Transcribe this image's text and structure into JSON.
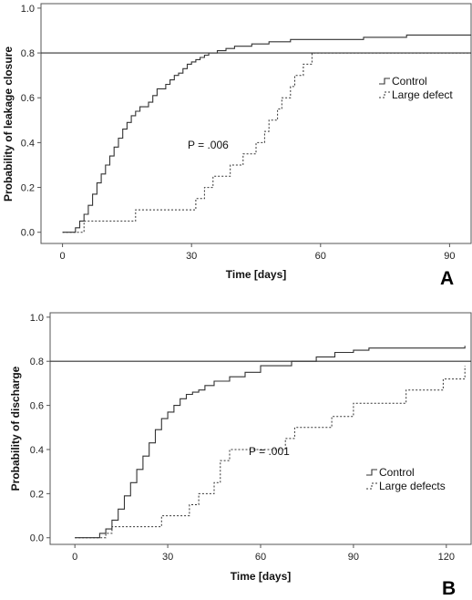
{
  "chart_data": [
    {
      "type": "line",
      "xlabel": "Time [days]",
      "ylabel": "Probability of leakage closure",
      "xlim": [
        -5,
        95
      ],
      "ylim": [
        -0.05,
        1.02
      ],
      "xticks": [
        "0",
        "30",
        "60",
        "90"
      ],
      "yticks": [
        "0.0",
        "0.2",
        "0.4",
        "0.6",
        "0.8",
        "1.0"
      ],
      "panel_label": "A",
      "annotation": "P = .006",
      "reference_line": 0.8,
      "grid": false,
      "legend_position": "right",
      "series": [
        {
          "name": "Control",
          "style": "solid",
          "x": [
            0,
            3,
            4,
            5,
            6,
            7,
            8,
            9,
            10,
            11,
            12,
            13,
            14,
            15,
            16,
            17,
            18,
            20,
            21,
            22,
            24,
            25,
            26,
            27,
            28,
            29,
            30,
            31,
            32,
            33,
            34,
            35,
            36,
            38,
            40,
            44,
            48,
            53,
            60,
            70,
            80,
            95
          ],
          "y": [
            0.0,
            0.02,
            0.05,
            0.08,
            0.12,
            0.17,
            0.22,
            0.26,
            0.3,
            0.34,
            0.38,
            0.42,
            0.46,
            0.49,
            0.52,
            0.54,
            0.56,
            0.58,
            0.61,
            0.64,
            0.66,
            0.68,
            0.7,
            0.71,
            0.73,
            0.75,
            0.76,
            0.77,
            0.78,
            0.79,
            0.8,
            0.8,
            0.81,
            0.82,
            0.83,
            0.84,
            0.85,
            0.86,
            0.86,
            0.87,
            0.88,
            0.88
          ]
        },
        {
          "name": "Large defect",
          "style": "dotted",
          "x": [
            0,
            5,
            17,
            31,
            33,
            35,
            39,
            42,
            45,
            47,
            48,
            50,
            51,
            53,
            54,
            56,
            58,
            60,
            62,
            64,
            67,
            78,
            80,
            95
          ],
          "y": [
            0.0,
            0.05,
            0.1,
            0.15,
            0.2,
            0.25,
            0.3,
            0.35,
            0.4,
            0.45,
            0.5,
            0.55,
            0.6,
            0.65,
            0.7,
            0.75,
            0.8,
            0.8,
            0.8,
            0.8,
            0.8,
            0.8,
            0.8,
            0.8
          ]
        }
      ]
    },
    {
      "type": "line",
      "xlabel": "Time [days]",
      "ylabel": "Probability of discharge",
      "xlim": [
        -8,
        128
      ],
      "ylim": [
        -0.03,
        1.02
      ],
      "xticks": [
        "0",
        "30",
        "60",
        "90",
        "120"
      ],
      "yticks": [
        "0.0",
        "0.2",
        "0.4",
        "0.6",
        "0.8",
        "1.0"
      ],
      "panel_label": "B",
      "annotation": "P = .001",
      "reference_line": 0.8,
      "grid": false,
      "legend_position": "right",
      "series": [
        {
          "name": "Control",
          "style": "solid",
          "x": [
            0,
            8,
            10,
            12,
            14,
            16,
            18,
            20,
            22,
            24,
            26,
            28,
            30,
            32,
            34,
            36,
            38,
            40,
            42,
            45,
            50,
            55,
            60,
            70,
            78,
            84,
            90,
            95,
            100,
            110,
            120,
            126
          ],
          "y": [
            0.0,
            0.02,
            0.04,
            0.08,
            0.13,
            0.19,
            0.25,
            0.31,
            0.37,
            0.43,
            0.49,
            0.54,
            0.57,
            0.6,
            0.63,
            0.65,
            0.66,
            0.67,
            0.69,
            0.71,
            0.73,
            0.75,
            0.78,
            0.8,
            0.82,
            0.84,
            0.85,
            0.86,
            0.86,
            0.86,
            0.86,
            0.87
          ]
        },
        {
          "name": "Large defects",
          "style": "dotted",
          "x": [
            0,
            10,
            12,
            28,
            37,
            40,
            45,
            47,
            50,
            68,
            71,
            72,
            80,
            83,
            90,
            100,
            107,
            116,
            119,
            122,
            126
          ],
          "y": [
            0.0,
            0.02,
            0.05,
            0.1,
            0.15,
            0.2,
            0.25,
            0.35,
            0.4,
            0.45,
            0.5,
            0.5,
            0.5,
            0.55,
            0.61,
            0.61,
            0.67,
            0.67,
            0.72,
            0.72,
            0.78
          ]
        }
      ]
    }
  ]
}
